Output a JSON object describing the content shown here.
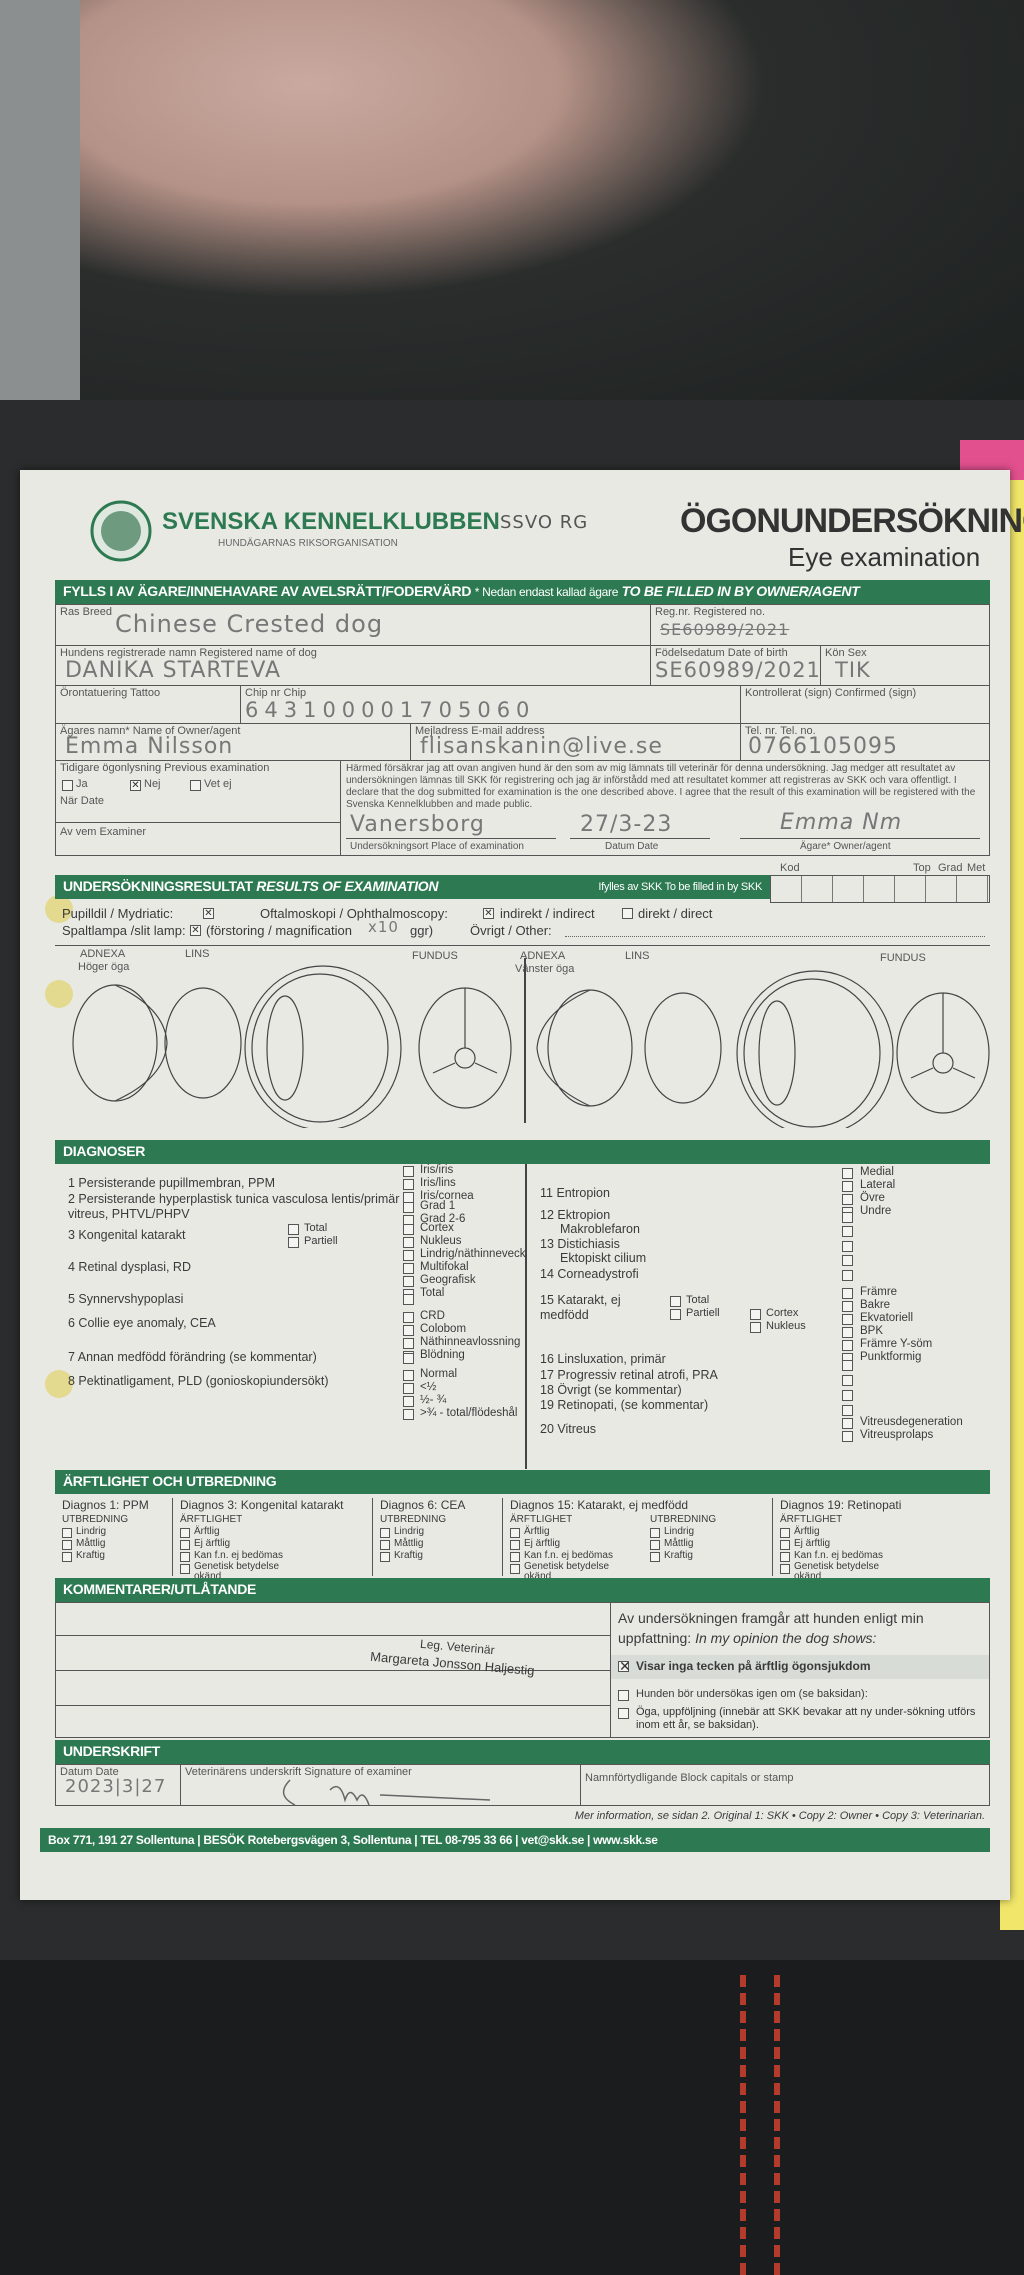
{
  "header": {
    "org": "SVENSKA KENNELKLUBBEN",
    "org_sub": "HUNDÄGARNAS RIKSORGANISATION",
    "title_sv": "ÖGONUNDERSÖKNING",
    "title_en": "Eye examination",
    "stamp": "SSVO RG"
  },
  "owner_section": {
    "bar_sv": "FYLLS I AV ÄGARE/INNEHAVARE AV AVELSRÄTT/FODERVÄRD",
    "bar_note": "* Nedan endast kallad ägare",
    "bar_en": "TO BE FILLED IN BY OWNER/AGENT",
    "breed_label": "Ras Breed",
    "breed": "Chinese Crested dog",
    "regno_label": "Reg.nr. Registered no.",
    "regno": "SE60989/2021",
    "dogname_label": "Hundens registrerade namn Registered name of dog",
    "dogname": "DANIKA STARTEVA",
    "dob_label": "Födelsedatum Date of birth",
    "dob": "SE60989/2021",
    "sex_label": "Kön Sex",
    "sex": "TIK",
    "tattoo_label": "Örontatuering Tattoo",
    "chip_label": "Chip nr Chip",
    "chip": "643100001705060",
    "confirmed_label": "Kontrollerat (sign) Confirmed (sign)",
    "owner_label": "Ägares namn* Name of Owner/agent",
    "owner": "Emma Nilsson",
    "email_label": "Mejladress E-mail address",
    "email": "flisanskanin@live.se",
    "tel_label": "Tel. nr. Tel. no.",
    "tel": "0766105095",
    "prev_label": "Tidigare ögonlysning Previous examination",
    "prev_options": [
      "Ja",
      "Nej",
      "Vet ej"
    ],
    "prev_selected": "Nej",
    "when_label": "När Date",
    "examiner_label": "Av vem Examiner",
    "declaration": "Härmed försäkrar jag att ovan angiven hund är den som av mig lämnats till veterinär för denna undersökning. Jag medger att resultatet av undersökningen lämnas till SKK för registrering och jag är införstådd med att resultatet kommer att registreras av SKK och vara offentligt. I declare that the dog submitted for examination is the one described above. I agree that the result of this examination will be registered with the Svenska Kennelklubben and made public.",
    "place_label": "Undersökningsort Place of examination",
    "place": "Vanersborg",
    "date_label": "Datum Date",
    "date": "27/3-23",
    "sign_label": "Ägare* Owner/agent",
    "sign": "Emma Nm"
  },
  "results": {
    "bar_sv": "UNDERSÖKNINGSRESULTAT",
    "bar_en": "RESULTS OF EXAMINATION",
    "skk_note": "Ifylles av SKK To be filled in by SKK",
    "kod": "Kod",
    "top": "Top",
    "grad": "Grad",
    "met": "Met",
    "mydriatic": "Pupilldil / Mydriatic:",
    "ophth": "Oftalmoskopi / Ophthalmoscopy:",
    "indirect": "indirekt / indirect",
    "direct": "direkt / direct",
    "slit": "Spaltlampa /slit lamp:",
    "magnif": "(förstoring / magnification",
    "magnif_value": "x10",
    "ggr": "ggr)",
    "other": "Övrigt / Other:",
    "eye_labels": {
      "adnexa": "ADNEXA",
      "lins": "LINS",
      "fundus": "FUNDUS",
      "right": "Höger öga",
      "left": "Vänster öga"
    }
  },
  "diagnoses": {
    "bar": "DIAGNOSER",
    "left": [
      {
        "label": "1  Persisterande pupillmembran, PPM",
        "options": [
          "Iris/iris",
          "Iris/lins",
          "Iris/cornea"
        ]
      },
      {
        "label": "2  Persisterande hyperplastisk tunica vasculosa lentis/primär vitreus, PHTVL/PHPV",
        "options": [
          "Grad 1",
          "Grad 2-6"
        ]
      },
      {
        "label": "3  Kongenital katarakt",
        "sub": [
          "Total",
          "Partiell"
        ],
        "options": [
          "Cortex",
          "Nukleus"
        ]
      },
      {
        "label": "4  Retinal dysplasi, RD",
        "options": [
          "Lindrig/näthinneveck",
          "Multifokal",
          "Geografisk",
          "Total"
        ]
      },
      {
        "label": "5  Synnervshypoplasi",
        "options": [
          ""
        ]
      },
      {
        "label": "6  Collie eye anomaly, CEA",
        "options": [
          "CRD",
          "Colobom",
          "Näthinneavlossning",
          "Blödning"
        ]
      },
      {
        "label": "7  Annan medfödd förändring (se kommentar)",
        "options": [
          ""
        ]
      },
      {
        "label": "8  Pektinatligament, PLD (gonioskopiundersökt)",
        "options": [
          "Normal",
          "<½",
          "½- ¾",
          ">¾ - total/flödeshål"
        ]
      }
    ],
    "right": [
      {
        "label": "11 Entropion",
        "options": [
          "Medial",
          "Lateral",
          "Övre",
          "Undre"
        ]
      },
      {
        "label": "12 Ektropion",
        "options": [
          ""
        ]
      },
      {
        "label": "Makroblefaron",
        "options": [
          ""
        ]
      },
      {
        "label": "13 Distichiasis",
        "options": [
          ""
        ]
      },
      {
        "label": "Ektopiskt cilium",
        "options": [
          ""
        ]
      },
      {
        "label": "14 Corneadystrofi",
        "options": [
          ""
        ]
      },
      {
        "label": "15 Katarakt, ej medfödd",
        "sub": [
          "Total",
          "Partiell"
        ],
        "sub2": [
          "Cortex",
          "Nukleus"
        ],
        "options": [
          "Främre",
          "Bakre",
          "Ekvatoriell",
          "BPK",
          "Främre Y-söm",
          "Punktformig"
        ]
      },
      {
        "label": "16 Linsluxation, primär",
        "options": [
          ""
        ]
      },
      {
        "label": "17 Progressiv retinal atrofi, PRA",
        "options": [
          ""
        ]
      },
      {
        "label": "18 Övrigt (se kommentar)",
        "options": [
          ""
        ]
      },
      {
        "label": "19 Retinopati, (se kommentar)",
        "options": [
          ""
        ]
      },
      {
        "label": "20 Vitreus",
        "options": [
          "Vitreusdegeneration",
          "Vitreusprolaps"
        ]
      }
    ]
  },
  "heredity": {
    "bar": "ÄRFTLIGHET OCH UTBREDNING",
    "columns": [
      {
        "title": "Diagnos 1: PPM",
        "groups": [
          {
            "head": "UTBREDNING",
            "items": [
              "Lindrig",
              "Måttlig",
              "Kraftig"
            ]
          }
        ]
      },
      {
        "title": "Diagnos 3: Kongenital katarakt",
        "groups": [
          {
            "head": "ÄRFTLIGHET",
            "items": [
              "Ärftlig",
              "Ej ärftlig",
              "Kan f.n. ej bedömas",
              "Genetisk betydelse okänd"
            ]
          }
        ]
      },
      {
        "title": "Diagnos 6: CEA",
        "groups": [
          {
            "head": "UTBREDNING",
            "items": [
              "Lindrig",
              "Måttlig",
              "Kraftig"
            ]
          }
        ]
      },
      {
        "title": "Diagnos 15: Katarakt, ej medfödd",
        "groups": [
          {
            "head": "ÄRFTLIGHET",
            "items": [
              "Ärftlig",
              "Ej ärftlig",
              "Kan f.n. ej bedömas",
              "Genetisk betydelse okänd"
            ]
          },
          {
            "head": "UTBREDNING",
            "items": [
              "Lindrig",
              "Måttlig",
              "Kraftig"
            ]
          }
        ]
      },
      {
        "title": "Diagnos 19: Retinopati",
        "groups": [
          {
            "head": "ÄRFTLIGHET",
            "items": [
              "Ärftlig",
              "Ej ärftlig",
              "Kan f.n. ej bedömas",
              "Genetisk betydelse okänd"
            ]
          }
        ]
      }
    ]
  },
  "comments": {
    "bar": "KOMMENTARER/UTLÅTANDE",
    "stamp_title": "Leg. Veterinär",
    "stamp_name": "Margareta Jonsson Haljestig",
    "opinion_1": "Av undersökningen framgår att hunden enligt min",
    "opinion_2": "uppfattning:",
    "opinion_en": "In my opinion the dog shows:",
    "opt_no_signs": "Visar inga tecken på ärftlig ögonsjukdom",
    "opt_no_signs_checked": true,
    "opt_reexamine": "Hunden bör undersökas igen om (se baksidan):",
    "opt_followup": "Öga, uppföljning (innebär att SKK bevakar att ny under-sökning utförs inom ett år, se baksidan)."
  },
  "signature": {
    "bar": "UNDERSKRIFT",
    "date_label": "Datum Date",
    "date": "2023|3|27",
    "vet_sign_label": "Veterinärens underskrift Signature of examiner",
    "block_label": "Namnförtydligande Block capitals or stamp",
    "footnote": "Mer information, se sidan 2.   Original 1: SKK • Copy 2: Owner • Copy 3: Veterinarian."
  },
  "footer": "Box 771, 191 27 Sollentuna  |  BESÖK Rotebergsvägen 3, Sollentuna  |  TEL 08-795 33 66  |  vet@skk.se  |  www.skk.se",
  "colors": {
    "brand_green": "#2d7a52",
    "paper": "#e9e9e4",
    "binder_yellow": "#f1e66a"
  }
}
